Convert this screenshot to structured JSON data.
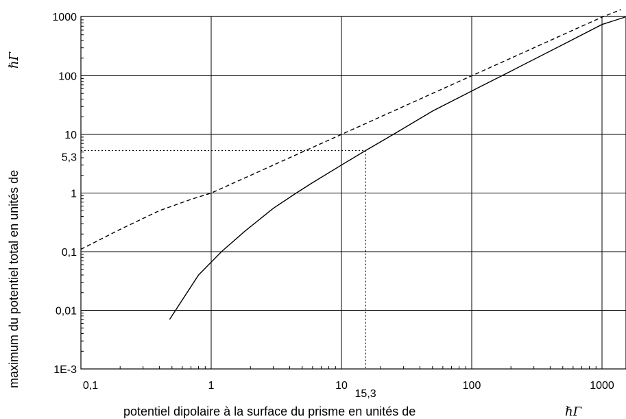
{
  "chart_data": {
    "type": "line",
    "xscale": "log",
    "yscale": "log",
    "xlim": [
      0.1,
      1500
    ],
    "ylim": [
      0.001,
      1200
    ],
    "grid": true,
    "xlabel": "potentiel dipolaire à la surface du prisme  en unités de",
    "xlabel_unit": "ℏΓ",
    "ylabel": "maximum du potentiel total  en unités de",
    "ylabel_unit": "ℏΓ",
    "x_ticks": [
      {
        "value": 0.1,
        "label": "0,1"
      },
      {
        "value": 1,
        "label": "1"
      },
      {
        "value": 10,
        "label": "10"
      },
      {
        "value": 100,
        "label": "100"
      },
      {
        "value": 1000,
        "label": "1000"
      }
    ],
    "y_ticks": [
      {
        "value": 0.001,
        "label": "1E-3"
      },
      {
        "value": 0.01,
        "label": "0,01"
      },
      {
        "value": 0.1,
        "label": "0,1"
      },
      {
        "value": 1,
        "label": "1"
      },
      {
        "value": 10,
        "label": "10"
      },
      {
        "value": 100,
        "label": "100"
      },
      {
        "value": 1000,
        "label": "1000"
      }
    ],
    "annotation": {
      "x": 15.3,
      "y": 5.3,
      "x_label": "15,3",
      "y_label": "5,3"
    },
    "series": [
      {
        "style": "solid",
        "x": [
          0.48,
          0.8,
          1.2,
          1.8,
          3,
          4.5,
          6,
          10,
          15.3,
          25,
          50,
          100,
          200,
          500,
          1000,
          1500
        ],
        "y": [
          0.007,
          0.04,
          0.1,
          0.22,
          0.55,
          1.0,
          1.5,
          3.0,
          5.3,
          10,
          25,
          55,
          120,
          340,
          750,
          1000
        ]
      },
      {
        "style": "dashed",
        "x": [
          0.1,
          0.2,
          0.4,
          0.7,
          1,
          2,
          5,
          10,
          20,
          50,
          100,
          200,
          500,
          1000,
          1400
        ],
        "y": [
          0.11,
          0.24,
          0.5,
          0.78,
          1.0,
          2.0,
          5.0,
          10,
          20,
          50,
          100,
          200,
          500,
          1000,
          1400
        ]
      }
    ]
  }
}
